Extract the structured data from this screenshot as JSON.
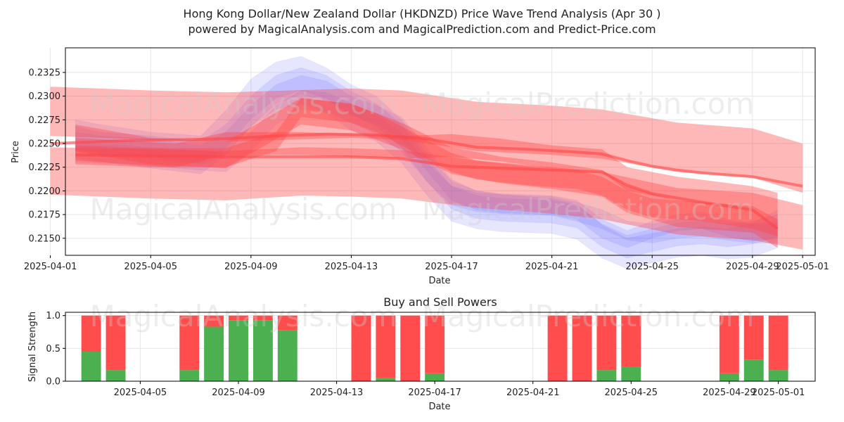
{
  "title_line1": "Hong Kong Dollar/New Zealand Dollar (HKDNZD) Price Wave Trend Analysis (Apr 30 )",
  "title_line2": "powered by MagicalAnalysis.com and MagicalPrediction.com and Predict-Price.com",
  "watermarks": [
    "MagicalAnalysis.com",
    "MagicalPrediction.com"
  ],
  "colors": {
    "blue_band": "#6666ff",
    "red_band": "#ff4444",
    "buy": "#4caf50",
    "sell": "#ff4d4d",
    "grid": "#e6e6e6"
  },
  "chart_data": [
    {
      "type": "area",
      "title": "Price Wave Trend",
      "xlabel": "Date",
      "ylabel": "Price",
      "x_ticks": [
        "2025-04-01",
        "2025-04-05",
        "2025-04-09",
        "2025-04-13",
        "2025-04-17",
        "2025-04-21",
        "2025-04-25",
        "2025-04-29",
        "2025-05-01"
      ],
      "y_ticks": [
        "0.2150",
        "0.2175",
        "0.2200",
        "0.2225",
        "0.2250",
        "0.2275",
        "0.2300",
        "0.2325"
      ],
      "ylim": [
        0.2132,
        0.2351
      ],
      "x_day_range": [
        0.6,
        30.5
      ],
      "x_tick_days": [
        0,
        4,
        8,
        12,
        16,
        20,
        24,
        28,
        30
      ],
      "blue_series": [
        {
          "days": [
            1,
            2,
            4,
            6,
            7,
            8,
            9,
            10,
            11,
            12,
            13,
            14,
            15,
            16,
            17,
            18,
            19,
            20,
            21,
            22,
            23,
            24,
            25,
            26,
            27,
            28,
            29
          ],
          "upper": [
            0.2262,
            0.2258,
            0.2255,
            0.2248,
            0.2262,
            0.229,
            0.2312,
            0.2322,
            0.2316,
            0.23,
            0.229,
            0.2278,
            0.2246,
            0.2212,
            0.22,
            0.2197,
            0.2196,
            0.2195,
            0.219,
            0.217,
            0.2158,
            0.2168,
            0.2175,
            0.2178,
            0.217,
            0.2165,
            0.2168
          ],
          "lower": [
            0.2242,
            0.2238,
            0.2234,
            0.2228,
            0.2238,
            0.2268,
            0.2292,
            0.2302,
            0.2296,
            0.228,
            0.227,
            0.2255,
            0.2222,
            0.219,
            0.218,
            0.2177,
            0.2176,
            0.2175,
            0.217,
            0.215,
            0.214,
            0.215,
            0.2158,
            0.216,
            0.2152,
            0.2147,
            0.215
          ]
        },
        {
          "days": [
            1,
            2,
            4,
            6,
            7,
            8,
            9,
            10,
            11,
            12,
            13,
            14,
            15,
            16,
            17,
            18,
            19,
            20,
            21,
            22,
            23,
            24,
            25,
            26,
            27,
            28,
            29
          ],
          "upper": [
            0.2268,
            0.2262,
            0.2258,
            0.2252,
            0.227,
            0.23,
            0.2322,
            0.233,
            0.2322,
            0.2305,
            0.2292,
            0.227,
            0.2235,
            0.2205,
            0.2195,
            0.2192,
            0.2191,
            0.219,
            0.2185,
            0.2165,
            0.2153,
            0.216,
            0.2166,
            0.2168,
            0.2165,
            0.2168,
            0.2175
          ],
          "lower": [
            0.2244,
            0.224,
            0.2236,
            0.223,
            0.2245,
            0.2276,
            0.2298,
            0.2306,
            0.2298,
            0.2281,
            0.2268,
            0.2246,
            0.2211,
            0.2181,
            0.2171,
            0.2168,
            0.2167,
            0.2166,
            0.2161,
            0.2141,
            0.2129,
            0.2136,
            0.2142,
            0.2144,
            0.2141,
            0.2144,
            0.2151
          ]
        },
        {
          "days": [
            1,
            3,
            5,
            7,
            8,
            9,
            10,
            11,
            12,
            13,
            14,
            15,
            16,
            17,
            18,
            20,
            21,
            22,
            23,
            24,
            25,
            26,
            27,
            28,
            29
          ],
          "upper": [
            0.225,
            0.2248,
            0.2244,
            0.224,
            0.2262,
            0.229,
            0.2306,
            0.2304,
            0.2292,
            0.228,
            0.2262,
            0.223,
            0.2205,
            0.2198,
            0.2196,
            0.2194,
            0.2188,
            0.218,
            0.2168,
            0.2165,
            0.217,
            0.2172,
            0.2168,
            0.2165,
            0.2165
          ],
          "lower": [
            0.223,
            0.2228,
            0.2224,
            0.222,
            0.2242,
            0.227,
            0.2286,
            0.2284,
            0.2272,
            0.226,
            0.2242,
            0.221,
            0.2185,
            0.2178,
            0.2176,
            0.2174,
            0.2168,
            0.216,
            0.2148,
            0.2145,
            0.215,
            0.2152,
            0.2148,
            0.2145,
            0.2145
          ]
        },
        {
          "days": [
            1,
            2,
            4,
            6,
            7,
            8,
            9,
            10,
            11,
            12,
            13,
            14,
            15,
            16,
            17,
            18,
            19,
            20,
            21,
            22,
            23,
            24,
            25,
            26,
            27,
            28,
            29
          ],
          "upper": [
            0.2275,
            0.227,
            0.2262,
            0.2258,
            0.2285,
            0.2318,
            0.2336,
            0.2342,
            0.233,
            0.2312,
            0.23,
            0.2275,
            0.224,
            0.221,
            0.22,
            0.2196,
            0.2194,
            0.2192,
            0.2186,
            0.2164,
            0.215,
            0.2155,
            0.216,
            0.2162,
            0.216,
            0.2166,
            0.218
          ],
          "lower": [
            0.2235,
            0.2231,
            0.2224,
            0.2218,
            0.2238,
            0.2268,
            0.2286,
            0.2292,
            0.2282,
            0.2264,
            0.2252,
            0.223,
            0.2196,
            0.2168,
            0.216,
            0.2157,
            0.2156,
            0.2155,
            0.2149,
            0.2129,
            0.2118,
            0.2124,
            0.213,
            0.2132,
            0.2128,
            0.213,
            0.214
          ]
        }
      ],
      "red_series": [
        {
          "days": [
            0,
            4,
            7,
            12,
            14,
            17,
            20,
            22,
            25,
            28,
            30
          ],
          "upper": [
            0.231,
            0.2306,
            0.2304,
            0.2308,
            0.2306,
            0.2294,
            0.229,
            0.2286,
            0.2272,
            0.2266,
            0.225
          ],
          "lower": [
            0.2258,
            0.2254,
            0.2252,
            0.2256,
            0.2254,
            0.2242,
            0.2238,
            0.2234,
            0.222,
            0.2214,
            0.2198
          ]
        },
        {
          "days": [
            0,
            4,
            7,
            10,
            12,
            14,
            17,
            20,
            22,
            25,
            28,
            30
          ],
          "upper": [
            0.2246,
            0.2244,
            0.2242,
            0.2246,
            0.2245,
            0.2243,
            0.2232,
            0.2225,
            0.222,
            0.2203,
            0.2198,
            0.2185
          ],
          "lower": [
            0.2196,
            0.2192,
            0.219,
            0.2195,
            0.2194,
            0.2192,
            0.2182,
            0.2176,
            0.217,
            0.2154,
            0.2148,
            0.2138
          ]
        },
        {
          "days": [
            1,
            4,
            7,
            9,
            10,
            12,
            13,
            14,
            15,
            16,
            17,
            19,
            21,
            22,
            23,
            24,
            26,
            28,
            29
          ],
          "upper": [
            0.2248,
            0.2245,
            0.2245,
            0.2262,
            0.2298,
            0.2292,
            0.2282,
            0.2268,
            0.2254,
            0.224,
            0.2232,
            0.2226,
            0.2222,
            0.2215,
            0.22,
            0.2192,
            0.2188,
            0.218,
            0.2172
          ],
          "lower": [
            0.2228,
            0.2225,
            0.2225,
            0.2242,
            0.2278,
            0.2272,
            0.2262,
            0.2248,
            0.2234,
            0.222,
            0.2212,
            0.2206,
            0.2202,
            0.2195,
            0.218,
            0.2172,
            0.2168,
            0.216,
            0.2152
          ]
        },
        {
          "days": [
            1,
            4,
            7,
            10,
            12,
            14,
            16,
            18,
            20,
            22,
            23,
            25,
            28,
            29
          ],
          "upper": [
            0.227,
            0.2256,
            0.2252,
            0.2298,
            0.2292,
            0.2272,
            0.2246,
            0.2236,
            0.223,
            0.2222,
            0.2205,
            0.219,
            0.2184,
            0.217
          ],
          "lower": [
            0.2242,
            0.2228,
            0.2224,
            0.227,
            0.2264,
            0.2244,
            0.2218,
            0.2208,
            0.2202,
            0.2194,
            0.2177,
            0.2162,
            0.2156,
            0.214
          ]
        },
        {
          "days": [
            1,
            5,
            7,
            10,
            14,
            16,
            18,
            20,
            22,
            23,
            25,
            28,
            29
          ],
          "upper": [
            0.2256,
            0.225,
            0.2262,
            0.2262,
            0.2258,
            0.226,
            0.2255,
            0.2248,
            0.2244,
            0.2225,
            0.2215,
            0.2205,
            0.2198
          ],
          "lower": [
            0.2232,
            0.2225,
            0.2238,
            0.2238,
            0.2234,
            0.2236,
            0.2231,
            0.2224,
            0.222,
            0.22,
            0.219,
            0.218,
            0.2172
          ]
        }
      ],
      "red_lines": [
        {
          "days": [
            0,
            3,
            7,
            9,
            11,
            13,
            15,
            17,
            19,
            21,
            22,
            23,
            24,
            25,
            26,
            28,
            30
          ],
          "values": [
            0.225,
            0.2253,
            0.2255,
            0.2258,
            0.226,
            0.2259,
            0.2255,
            0.2246,
            0.2244,
            0.2241,
            0.2239,
            0.2232,
            0.2226,
            0.2222,
            0.2219,
            0.2215,
            0.2205
          ]
        },
        {
          "days": [
            1,
            4,
            7,
            9,
            10,
            12,
            14,
            16,
            18,
            20,
            22,
            23,
            24,
            26,
            28,
            29
          ],
          "values": [
            0.2238,
            0.2237,
            0.2236,
            0.2236,
            0.2236,
            0.2236,
            0.2234,
            0.2226,
            0.2224,
            0.2222,
            0.222,
            0.2206,
            0.2197,
            0.2188,
            0.218,
            0.216
          ]
        }
      ]
    },
    {
      "type": "bar",
      "title": "Buy and Sell Powers",
      "xlabel": "Date",
      "ylabel": "Signal Strength",
      "x_ticks": [
        "2025-04-05",
        "2025-04-09",
        "2025-04-13",
        "2025-04-17",
        "2025-04-21",
        "2025-04-25",
        "2025-04-29",
        "2025-05-01"
      ],
      "y_ticks": [
        "0.0",
        "0.5",
        "1.0"
      ],
      "ylim": [
        0,
        1.05
      ],
      "x_day_range": [
        0.95,
        31.5
      ],
      "x_tick_days": [
        4,
        8,
        12,
        16,
        20,
        24,
        28,
        30
      ],
      "bars": [
        {
          "day": 2,
          "buy": 0.45,
          "sell": 0.55
        },
        {
          "day": 3,
          "buy": 0.17,
          "sell": 0.83
        },
        {
          "day": 6,
          "buy": 0.17,
          "sell": 0.83
        },
        {
          "day": 7,
          "buy": 0.83,
          "sell": 0.17
        },
        {
          "day": 8,
          "buy": 0.93,
          "sell": 0.07
        },
        {
          "day": 9,
          "buy": 0.93,
          "sell": 0.07
        },
        {
          "day": 10,
          "buy": 0.78,
          "sell": 0.22
        },
        {
          "day": 13,
          "buy": 0.0,
          "sell": 1.0
        },
        {
          "day": 14,
          "buy": 0.05,
          "sell": 0.95
        },
        {
          "day": 15,
          "buy": 0.0,
          "sell": 1.0
        },
        {
          "day": 16,
          "buy": 0.12,
          "sell": 0.88
        },
        {
          "day": 21,
          "buy": 0.0,
          "sell": 1.0
        },
        {
          "day": 22,
          "buy": 0.0,
          "sell": 1.0
        },
        {
          "day": 23,
          "buy": 0.17,
          "sell": 0.83
        },
        {
          "day": 24,
          "buy": 0.22,
          "sell": 0.78
        },
        {
          "day": 28,
          "buy": 0.12,
          "sell": 0.88
        },
        {
          "day": 29,
          "buy": 0.33,
          "sell": 0.67
        },
        {
          "day": 30,
          "buy": 0.17,
          "sell": 0.83
        }
      ]
    }
  ]
}
